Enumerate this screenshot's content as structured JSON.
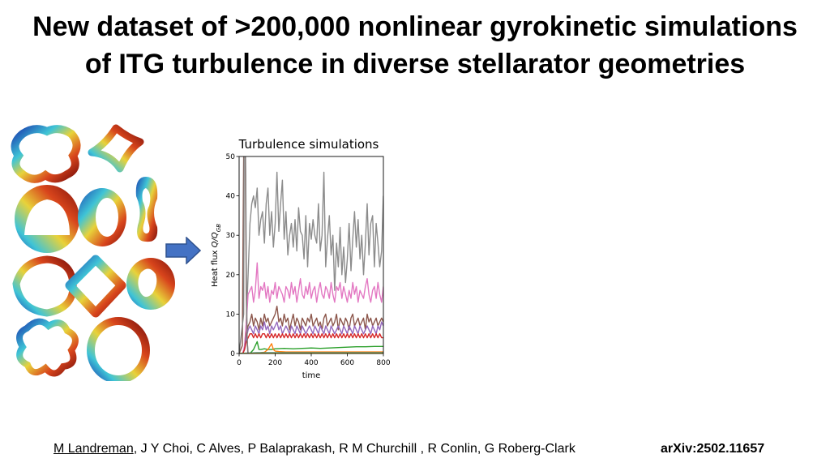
{
  "slide": {
    "title_line1": "New dataset of >200,000 nonlinear gyrokinetic simulations",
    "title_line2": "of ITG turbulence in diverse stellarator geometries"
  },
  "footer": {
    "author_first": "M Landreman",
    "authors_rest": ", J Y Choi, C Alves, P Balaprakash, R M Churchill , R Conlin, G Roberg-Clark",
    "arxiv": "arXiv:2502.11657"
  },
  "icons": {
    "arrow": "arrow-right-icon",
    "geometries": "stellarator-cross-section-icon"
  },
  "chart_data": {
    "type": "line",
    "title": "Turbulence simulations",
    "xlabel": "time",
    "ylabel_prefix": "Heat flux ",
    "ylabel_math": "Q/Q",
    "ylabel_sub": "GB",
    "xlim": [
      0,
      800
    ],
    "ylim": [
      0,
      50
    ],
    "xticks": [
      "0",
      "200",
      "400",
      "600",
      "800"
    ],
    "yticks": [
      "0",
      "10",
      "20",
      "30",
      "40",
      "50"
    ],
    "grid": false,
    "legend": "none",
    "series": [
      {
        "color": "#8c8c8c",
        "x": [
          0,
          20,
          30,
          40,
          50,
          60,
          70,
          80,
          90,
          100,
          110,
          120,
          130,
          140,
          150,
          160,
          170,
          180,
          190,
          200,
          210,
          220,
          230,
          240,
          250,
          260,
          270,
          280,
          290,
          300,
          310,
          320,
          330,
          340,
          350,
          360,
          370,
          380,
          390,
          400,
          410,
          420,
          430,
          440,
          450,
          460,
          470,
          480,
          490,
          500,
          510,
          520,
          530,
          540,
          550,
          560,
          570,
          580,
          590,
          600,
          610,
          620,
          630,
          640,
          650,
          660,
          670,
          680,
          690,
          700,
          710,
          720,
          730,
          740,
          750,
          760,
          770,
          780,
          790,
          800
        ],
        "y": [
          0,
          0,
          1,
          8,
          20,
          33,
          38,
          40,
          37,
          42,
          30,
          34,
          36,
          28,
          38,
          42,
          30,
          36,
          27,
          33,
          46,
          31,
          38,
          44,
          29,
          36,
          25,
          30,
          33,
          27,
          34,
          26,
          37,
          31,
          30,
          24,
          35,
          22,
          33,
          29,
          34,
          30,
          28,
          38,
          26,
          30,
          46,
          22,
          29,
          35,
          25,
          30,
          16,
          28,
          22,
          32,
          20,
          27,
          18,
          24,
          33,
          21,
          29,
          36,
          27,
          34,
          24,
          30,
          20,
          28,
          38,
          25,
          33,
          35,
          22,
          33,
          28,
          22,
          26,
          40
        ]
      },
      {
        "color": "#e377c2",
        "x": [
          0,
          20,
          30,
          40,
          50,
          60,
          70,
          80,
          90,
          100,
          110,
          120,
          130,
          140,
          150,
          160,
          170,
          180,
          190,
          200,
          210,
          220,
          230,
          240,
          250,
          260,
          270,
          280,
          290,
          300,
          310,
          320,
          330,
          340,
          350,
          360,
          370,
          380,
          390,
          400,
          410,
          420,
          430,
          440,
          450,
          460,
          470,
          480,
          490,
          500,
          510,
          520,
          530,
          540,
          550,
          560,
          570,
          580,
          590,
          600,
          610,
          620,
          630,
          640,
          650,
          660,
          670,
          680,
          690,
          700,
          710,
          720,
          730,
          740,
          750,
          760,
          770,
          780,
          790,
          800
        ],
        "y": [
          0,
          0,
          2,
          8,
          15,
          16,
          17,
          13,
          16,
          23,
          14,
          17,
          16,
          18,
          14,
          17,
          13,
          16,
          15,
          18,
          14,
          17,
          16,
          15,
          13,
          17,
          16,
          14,
          18,
          15,
          17,
          13,
          16,
          19,
          15,
          14,
          17,
          15,
          18,
          14,
          16,
          17,
          13,
          16,
          18,
          15,
          14,
          17,
          16,
          14,
          18,
          15,
          13,
          17,
          16,
          18,
          14,
          17,
          15,
          13,
          16,
          14,
          18,
          15,
          17,
          13,
          16,
          15,
          14,
          17,
          19,
          15,
          13,
          16,
          17,
          14,
          18,
          15,
          13,
          17
        ]
      },
      {
        "color": "#8c564b",
        "x": [
          0,
          20,
          30,
          40,
          50,
          60,
          70,
          80,
          90,
          100,
          110,
          120,
          130,
          140,
          150,
          160,
          170,
          180,
          190,
          200,
          210,
          220,
          230,
          240,
          250,
          260,
          270,
          280,
          290,
          300,
          310,
          320,
          330,
          340,
          350,
          360,
          370,
          380,
          390,
          400,
          410,
          420,
          430,
          440,
          450,
          460,
          470,
          480,
          490,
          500,
          510,
          520,
          530,
          540,
          550,
          560,
          570,
          580,
          590,
          600,
          610,
          620,
          630,
          640,
          650,
          660,
          670,
          680,
          690,
          700,
          710,
          720,
          730,
          740,
          750,
          760,
          770,
          780,
          790,
          800
        ],
        "y": [
          0,
          0,
          1,
          5,
          7,
          8,
          10,
          7,
          9,
          8,
          6,
          9,
          7,
          10,
          8,
          9,
          7,
          8,
          9,
          10,
          12,
          8,
          9,
          7,
          10,
          8,
          9,
          6,
          8,
          10,
          7,
          9,
          8,
          6,
          9,
          8,
          7,
          9,
          8,
          10,
          7,
          8,
          9,
          7,
          8,
          6,
          9,
          10,
          7,
          8,
          9,
          7,
          8,
          10,
          6,
          9,
          8,
          7,
          9,
          8,
          6,
          9,
          10,
          7,
          8,
          9,
          7,
          8,
          9,
          6,
          10,
          8,
          9,
          7,
          8,
          9,
          7,
          8,
          9,
          8
        ]
      },
      {
        "color": "#9467bd",
        "x": [
          0,
          20,
          30,
          40,
          50,
          60,
          70,
          80,
          90,
          100,
          110,
          120,
          130,
          140,
          150,
          160,
          170,
          180,
          190,
          200,
          210,
          220,
          230,
          240,
          250,
          260,
          270,
          280,
          290,
          300,
          310,
          320,
          330,
          340,
          350,
          360,
          370,
          380,
          390,
          400,
          410,
          420,
          430,
          440,
          450,
          460,
          470,
          480,
          490,
          500,
          510,
          520,
          530,
          540,
          550,
          560,
          570,
          580,
          590,
          600,
          610,
          620,
          630,
          640,
          650,
          660,
          670,
          680,
          690,
          700,
          710,
          720,
          730,
          740,
          750,
          760,
          770,
          780,
          790,
          800
        ],
        "y": [
          0,
          0,
          1,
          4,
          6,
          7,
          6,
          5,
          7,
          6,
          5,
          7,
          6,
          8,
          6,
          7,
          5,
          7,
          6,
          7,
          8,
          6,
          7,
          5,
          6,
          7,
          6,
          5,
          7,
          6,
          5,
          7,
          6,
          5,
          7,
          6,
          5,
          6,
          7,
          6,
          5,
          7,
          6,
          5,
          7,
          6,
          5,
          7,
          6,
          5,
          7,
          6,
          5,
          6,
          7,
          6,
          5,
          7,
          6,
          5,
          7,
          6,
          5,
          7,
          6,
          5,
          7,
          6,
          5,
          6,
          7,
          6,
          5,
          7,
          6,
          5,
          7,
          6,
          8,
          7
        ]
      },
      {
        "color": "#d62728",
        "x": [
          0,
          20,
          30,
          40,
          50,
          60,
          70,
          80,
          90,
          100,
          110,
          120,
          130,
          140,
          150,
          160,
          170,
          180,
          190,
          200,
          210,
          220,
          230,
          240,
          250,
          260,
          270,
          280,
          290,
          300,
          310,
          320,
          330,
          340,
          350,
          360,
          370,
          380,
          390,
          400,
          410,
          420,
          430,
          440,
          450,
          460,
          470,
          480,
          490,
          500,
          510,
          520,
          530,
          540,
          550,
          560,
          570,
          580,
          590,
          600,
          610,
          620,
          630,
          640,
          650,
          660,
          670,
          680,
          690,
          700,
          710,
          720,
          730,
          740,
          750,
          760,
          770,
          780,
          790,
          800
        ],
        "y": [
          0,
          0,
          1,
          3,
          4,
          5,
          5,
          4,
          5,
          4,
          5,
          4,
          5,
          5,
          4,
          5,
          4,
          5,
          4,
          5,
          4,
          5,
          4,
          5,
          4,
          5,
          4,
          5,
          4,
          5,
          4,
          5,
          4,
          5,
          4,
          5,
          4,
          5,
          4,
          5,
          4,
          5,
          4,
          5,
          4,
          5,
          4,
          5,
          4,
          5,
          4,
          5,
          4,
          5,
          4,
          5,
          4,
          5,
          4,
          5,
          4,
          5,
          4,
          5,
          4,
          5,
          4,
          5,
          4,
          5,
          4,
          5,
          4,
          5,
          4,
          5,
          4,
          5,
          4,
          4
        ]
      },
      {
        "color": "#2ca02c",
        "x": [
          0,
          40,
          60,
          80,
          90,
          100,
          110,
          120,
          140,
          160,
          180,
          200,
          250,
          300,
          350,
          400,
          450,
          500,
          550,
          600,
          650,
          700,
          750,
          800
        ],
        "y": [
          0,
          0,
          0,
          1,
          2,
          3,
          1,
          1,
          1.2,
          1,
          1,
          1.2,
          1.3,
          1.2,
          1.3,
          1.4,
          1.3,
          1.4,
          1.5,
          1.6,
          1.7,
          1.7,
          1.8,
          1.8
        ]
      },
      {
        "color": "#ff7f0e",
        "x": [
          0,
          100,
          120,
          140,
          160,
          180,
          190,
          200,
          220,
          260,
          300,
          400,
          500,
          600,
          700,
          800
        ],
        "y": [
          0,
          0,
          0.2,
          0.3,
          1,
          2.5,
          1,
          0.6,
          0.5,
          0.4,
          0.4,
          0.4,
          0.4,
          0.4,
          0.4,
          0.4
        ]
      },
      {
        "color": "#1f77b4",
        "x": [
          0,
          100,
          200,
          300,
          400,
          500,
          600,
          700,
          800
        ],
        "y": [
          0,
          0.2,
          0.2,
          0.2,
          0.2,
          0.2,
          0.2,
          0.2,
          0.2
        ]
      },
      {
        "color": "#bcbd22",
        "x": [
          0,
          100,
          200,
          300,
          400,
          500,
          600,
          700,
          800
        ],
        "y": [
          0,
          0.1,
          0.1,
          0.1,
          0.1,
          0.1,
          0.1,
          0.1,
          0.1
        ]
      },
      {
        "color": "#8c564b",
        "x": [
          0,
          18,
          22,
          26,
          30,
          34,
          36,
          40,
          45,
          50
        ],
        "y": [
          0,
          2,
          30,
          55,
          55,
          55,
          40,
          15,
          3,
          0
        ]
      },
      {
        "color": "#7f7f7f",
        "x": [
          0,
          25,
          28,
          31,
          34,
          37,
          40,
          44,
          48
        ],
        "y": [
          0,
          10,
          55,
          55,
          55,
          45,
          20,
          5,
          0
        ]
      }
    ]
  }
}
